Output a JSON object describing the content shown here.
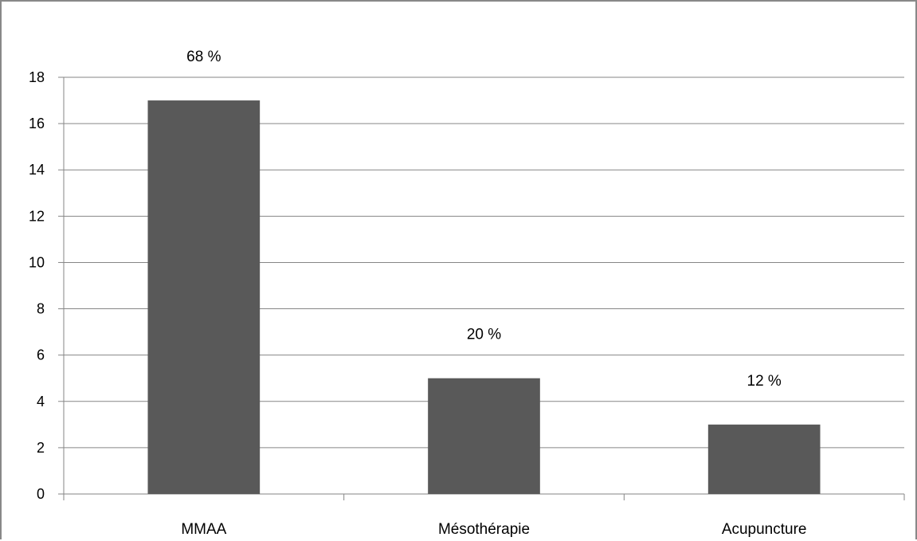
{
  "chart_data": {
    "type": "bar",
    "title": "",
    "xlabel": "",
    "ylabel": "",
    "categories": [
      "MMAA",
      "Mésothérapie",
      "Acupuncture"
    ],
    "values": [
      17,
      5,
      3
    ],
    "data_labels": [
      "68 %",
      "20 %",
      "12 %"
    ],
    "ylim": [
      0,
      18
    ],
    "yticks": [
      0,
      2,
      4,
      6,
      8,
      10,
      12,
      14,
      16,
      18
    ],
    "grid": true,
    "legend": "none",
    "colors": {
      "bar": "#595959",
      "grid": "#868686",
      "axis": "#868686"
    }
  }
}
